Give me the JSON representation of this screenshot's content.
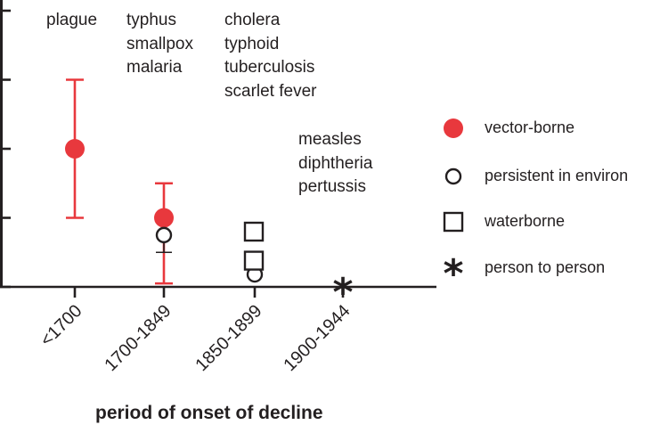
{
  "chart_data": {
    "type": "scatter",
    "title": "",
    "xlabel": "period of onset of decline",
    "ylabel": "",
    "categories": [
      "<1700",
      "1700-1849",
      "1850-1899",
      "1900-1944"
    ],
    "ylim": [
      0,
      4.1
    ],
    "ytick_values": [
      0,
      1,
      2,
      3,
      4
    ],
    "grid": false,
    "legend_position": "right",
    "series": [
      {
        "name": "vector-borne",
        "color": "#e8383d",
        "marker": "filled-circle",
        "points": [
          {
            "category": "<1700",
            "y": 2.0,
            "err_low": 1.0,
            "err_high": 3.0
          },
          {
            "category": "1700-1849",
            "y": 1.0,
            "err_low": 0.05,
            "err_high": 1.5
          }
        ]
      },
      {
        "name": "persistent in environ",
        "color": "#231f20",
        "marker": "open-circle",
        "points": [
          {
            "category": "1700-1849",
            "y": 0.75,
            "err_low": 0.5,
            "err_high": 1.0
          },
          {
            "category": "1850-1899",
            "y": 0.18
          }
        ]
      },
      {
        "name": "waterborne",
        "color": "#231f20",
        "marker": "open-square",
        "points": [
          {
            "category": "1850-1899",
            "y": 0.8
          },
          {
            "category": "1850-1899",
            "y": 0.38
          }
        ]
      },
      {
        "name": "person to person",
        "color": "#231f20",
        "marker": "asterisk",
        "points": [
          {
            "category": "1900-1944",
            "y": 0.0
          }
        ]
      }
    ],
    "annotations": [
      {
        "lines": [
          "plague"
        ]
      },
      {
        "lines": [
          "typhus",
          "smallpox",
          "malaria"
        ]
      },
      {
        "lines": [
          "cholera",
          "typhoid",
          "tuberculosis",
          "scarlet fever"
        ]
      },
      {
        "lines": [
          "measles",
          "diphtheria",
          "pertussis"
        ]
      }
    ]
  }
}
